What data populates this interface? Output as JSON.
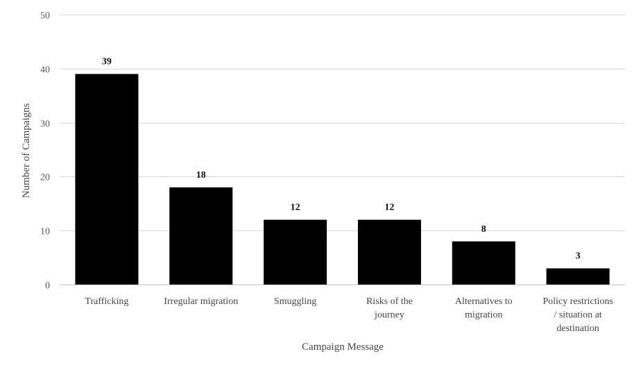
{
  "chart_data": {
    "type": "bar",
    "title": "",
    "xlabel": "Campaign Message",
    "ylabel": "Number of Campaigns",
    "ylim": [
      0,
      50
    ],
    "yticks": [
      0,
      10,
      20,
      30,
      40,
      50
    ],
    "grid": true,
    "legend": "none",
    "categories": [
      [
        "Trafficking"
      ],
      [
        "Irregular migration"
      ],
      [
        "Smuggling"
      ],
      [
        "Risks of the",
        "journey"
      ],
      [
        "Alternatives to",
        "migration"
      ],
      [
        "Policy restrictions",
        "/ situation at",
        "destination"
      ]
    ],
    "values": [
      39,
      18,
      12,
      12,
      8,
      3
    ],
    "bar_color": "#000000"
  }
}
